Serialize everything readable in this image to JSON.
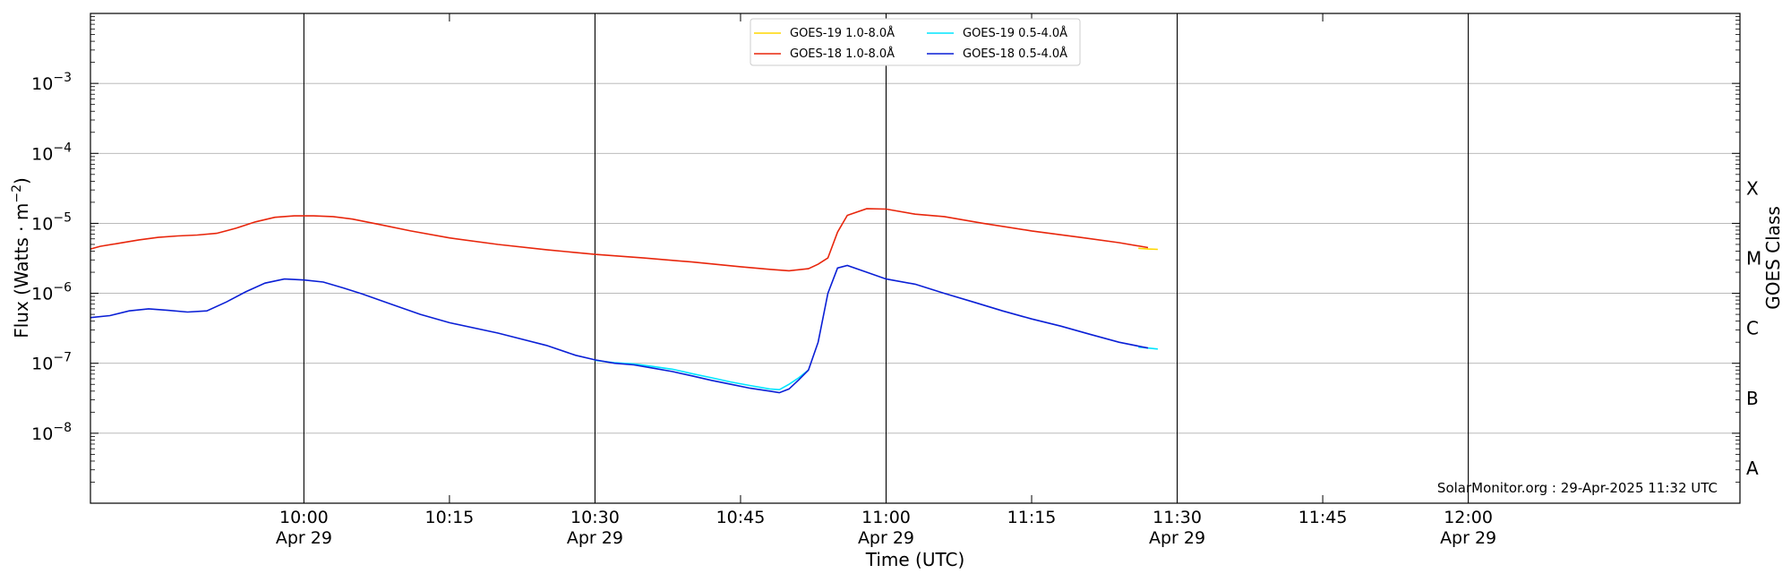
{
  "chart_data": {
    "type": "line",
    "xlabel": "Time (UTC)",
    "ylabel": "Flux (Watts · m",
    "ylabel_exp": "−2",
    "ylabel_close": ")",
    "right_label": "GOES Class",
    "yscale": "log",
    "xlim": [
      "09:38",
      "12:28"
    ],
    "ylim": [
      1e-09,
      0.01
    ],
    "x_ticks_major": [
      {
        "time": "10:00",
        "label": "10:00",
        "date": "Apr 29"
      },
      {
        "time": "10:30",
        "label": "10:30",
        "date": "Apr 29"
      },
      {
        "time": "11:00",
        "label": "11:00",
        "date": "Apr 29"
      },
      {
        "time": "11:30",
        "label": "11:30",
        "date": "Apr 29"
      },
      {
        "time": "12:00",
        "label": "12:00",
        "date": "Apr 29"
      }
    ],
    "x_ticks_minor": [
      {
        "time": "10:15",
        "label": "10:15"
      },
      {
        "time": "10:45",
        "label": "10:45"
      },
      {
        "time": "11:15",
        "label": "11:15"
      },
      {
        "time": "11:45",
        "label": "11:45"
      }
    ],
    "y_ticks": [
      {
        "exp": -8,
        "base": "10",
        "sup": "−8"
      },
      {
        "exp": -7,
        "base": "10",
        "sup": "−7"
      },
      {
        "exp": -6,
        "base": "10",
        "sup": "−6"
      },
      {
        "exp": -5,
        "base": "10",
        "sup": "−5"
      },
      {
        "exp": -4,
        "base": "10",
        "sup": "−4"
      },
      {
        "exp": -3,
        "base": "10",
        "sup": "−3"
      }
    ],
    "goes_classes": [
      {
        "label": "A",
        "exp": -8.5
      },
      {
        "label": "B",
        "exp": -7.5
      },
      {
        "label": "C",
        "exp": -6.5
      },
      {
        "label": "M",
        "exp": -5.5
      },
      {
        "label": "X",
        "exp": -4.5
      }
    ],
    "grid": true,
    "legend_position": "top-center",
    "credit": "SolarMonitor.org : 29-Apr-2025 11:32 UTC",
    "series": [
      {
        "name": "GOES-19 1.0-8.0Å",
        "color": "#ffd700",
        "x": [
          "11:26",
          "11:27",
          "11:28"
        ],
        "y": [
          4.4e-06,
          4.3e-06,
          4.25e-06
        ]
      },
      {
        "name": "GOES-19 0.5-4.0Å",
        "color": "#00e5ff",
        "x": [
          "10:30",
          "10:32",
          "10:34",
          "10:36",
          "10:38",
          "10:40",
          "10:42",
          "10:44",
          "10:46",
          "10:48",
          "10:49",
          "10:50",
          "10:51",
          "10:52",
          "11:26",
          "11:27",
          "11:28"
        ],
        "y": [
          1.1e-07,
          1.02e-07,
          9.8e-08,
          9e-08,
          8.2e-08,
          7.1e-08,
          6.2e-08,
          5.4e-08,
          4.8e-08,
          4.3e-08,
          4.2e-08,
          5e-08,
          6.2e-08,
          8e-08,
          1.7e-07,
          1.65e-07,
          1.6e-07
        ]
      },
      {
        "name": "GOES-18 1.0-8.0Å",
        "color": "#e8260c",
        "x": [
          "09:38",
          "09:39",
          "09:41",
          "09:43",
          "09:45",
          "09:47",
          "09:49",
          "09:51",
          "09:53",
          "09:55",
          "09:57",
          "09:59",
          "10:01",
          "10:03",
          "10:05",
          "10:08",
          "10:11",
          "10:15",
          "10:20",
          "10:25",
          "10:30",
          "10:35",
          "10:40",
          "10:45",
          "10:48",
          "10:50",
          "10:52",
          "10:53",
          "10:54",
          "10:55",
          "10:56",
          "10:58",
          "11:00",
          "11:03",
          "11:06",
          "11:10",
          "11:15",
          "11:20",
          "11:24",
          "11:27"
        ],
        "y": [
          4.3e-06,
          4.7e-06,
          5.2e-06,
          5.8e-06,
          6.3e-06,
          6.6e-06,
          6.8e-06,
          7.2e-06,
          8.5e-06,
          1.05e-05,
          1.22e-05,
          1.28e-05,
          1.28e-05,
          1.25e-05,
          1.15e-05,
          9.5e-06,
          7.8e-06,
          6.2e-06,
          5e-06,
          4.2e-06,
          3.6e-06,
          3.2e-06,
          2.8e-06,
          2.4e-06,
          2.2e-06,
          2.1e-06,
          2.25e-06,
          2.6e-06,
          3.2e-06,
          7.5e-06,
          1.3e-05,
          1.62e-05,
          1.6e-05,
          1.35e-05,
          1.25e-05,
          1e-05,
          7.8e-06,
          6.3e-06,
          5.3e-06,
          4.5e-06
        ]
      },
      {
        "name": "GOES-18 0.5-4.0Å",
        "color": "#0a1fd6",
        "x": [
          "09:38",
          "09:40",
          "09:42",
          "09:44",
          "09:46",
          "09:48",
          "09:50",
          "09:52",
          "09:54",
          "09:56",
          "09:58",
          "10:00",
          "10:02",
          "10:04",
          "10:06",
          "10:09",
          "10:12",
          "10:15",
          "10:20",
          "10:25",
          "10:28",
          "10:30",
          "10:32",
          "10:34",
          "10:36",
          "10:38",
          "10:40",
          "10:42",
          "10:44",
          "10:46",
          "10:48",
          "10:49",
          "10:50",
          "10:51",
          "10:52",
          "10:53",
          "10:54",
          "10:55",
          "10:56",
          "10:58",
          "11:00",
          "11:03",
          "11:06",
          "11:09",
          "11:12",
          "11:15",
          "11:18",
          "11:21",
          "11:24",
          "11:27"
        ],
        "y": [
          4.5e-07,
          4.8e-07,
          5.6e-07,
          6e-07,
          5.7e-07,
          5.4e-07,
          5.6e-07,
          7.5e-07,
          1.05e-06,
          1.4e-06,
          1.6e-06,
          1.55e-06,
          1.45e-06,
          1.2e-06,
          9.8e-07,
          7e-07,
          5e-07,
          3.8e-07,
          2.7e-07,
          1.8e-07,
          1.3e-07,
          1.12e-07,
          1e-07,
          9.5e-08,
          8.5e-08,
          7.6e-08,
          6.6e-08,
          5.7e-08,
          5e-08,
          4.4e-08,
          4e-08,
          3.8e-08,
          4.3e-08,
          5.8e-08,
          8e-08,
          2e-07,
          1e-06,
          2.3e-06,
          2.5e-06,
          2e-06,
          1.6e-06,
          1.35e-06,
          1e-06,
          7.5e-07,
          5.6e-07,
          4.3e-07,
          3.4e-07,
          2.6e-07,
          2e-07,
          1.65e-07
        ]
      }
    ]
  }
}
